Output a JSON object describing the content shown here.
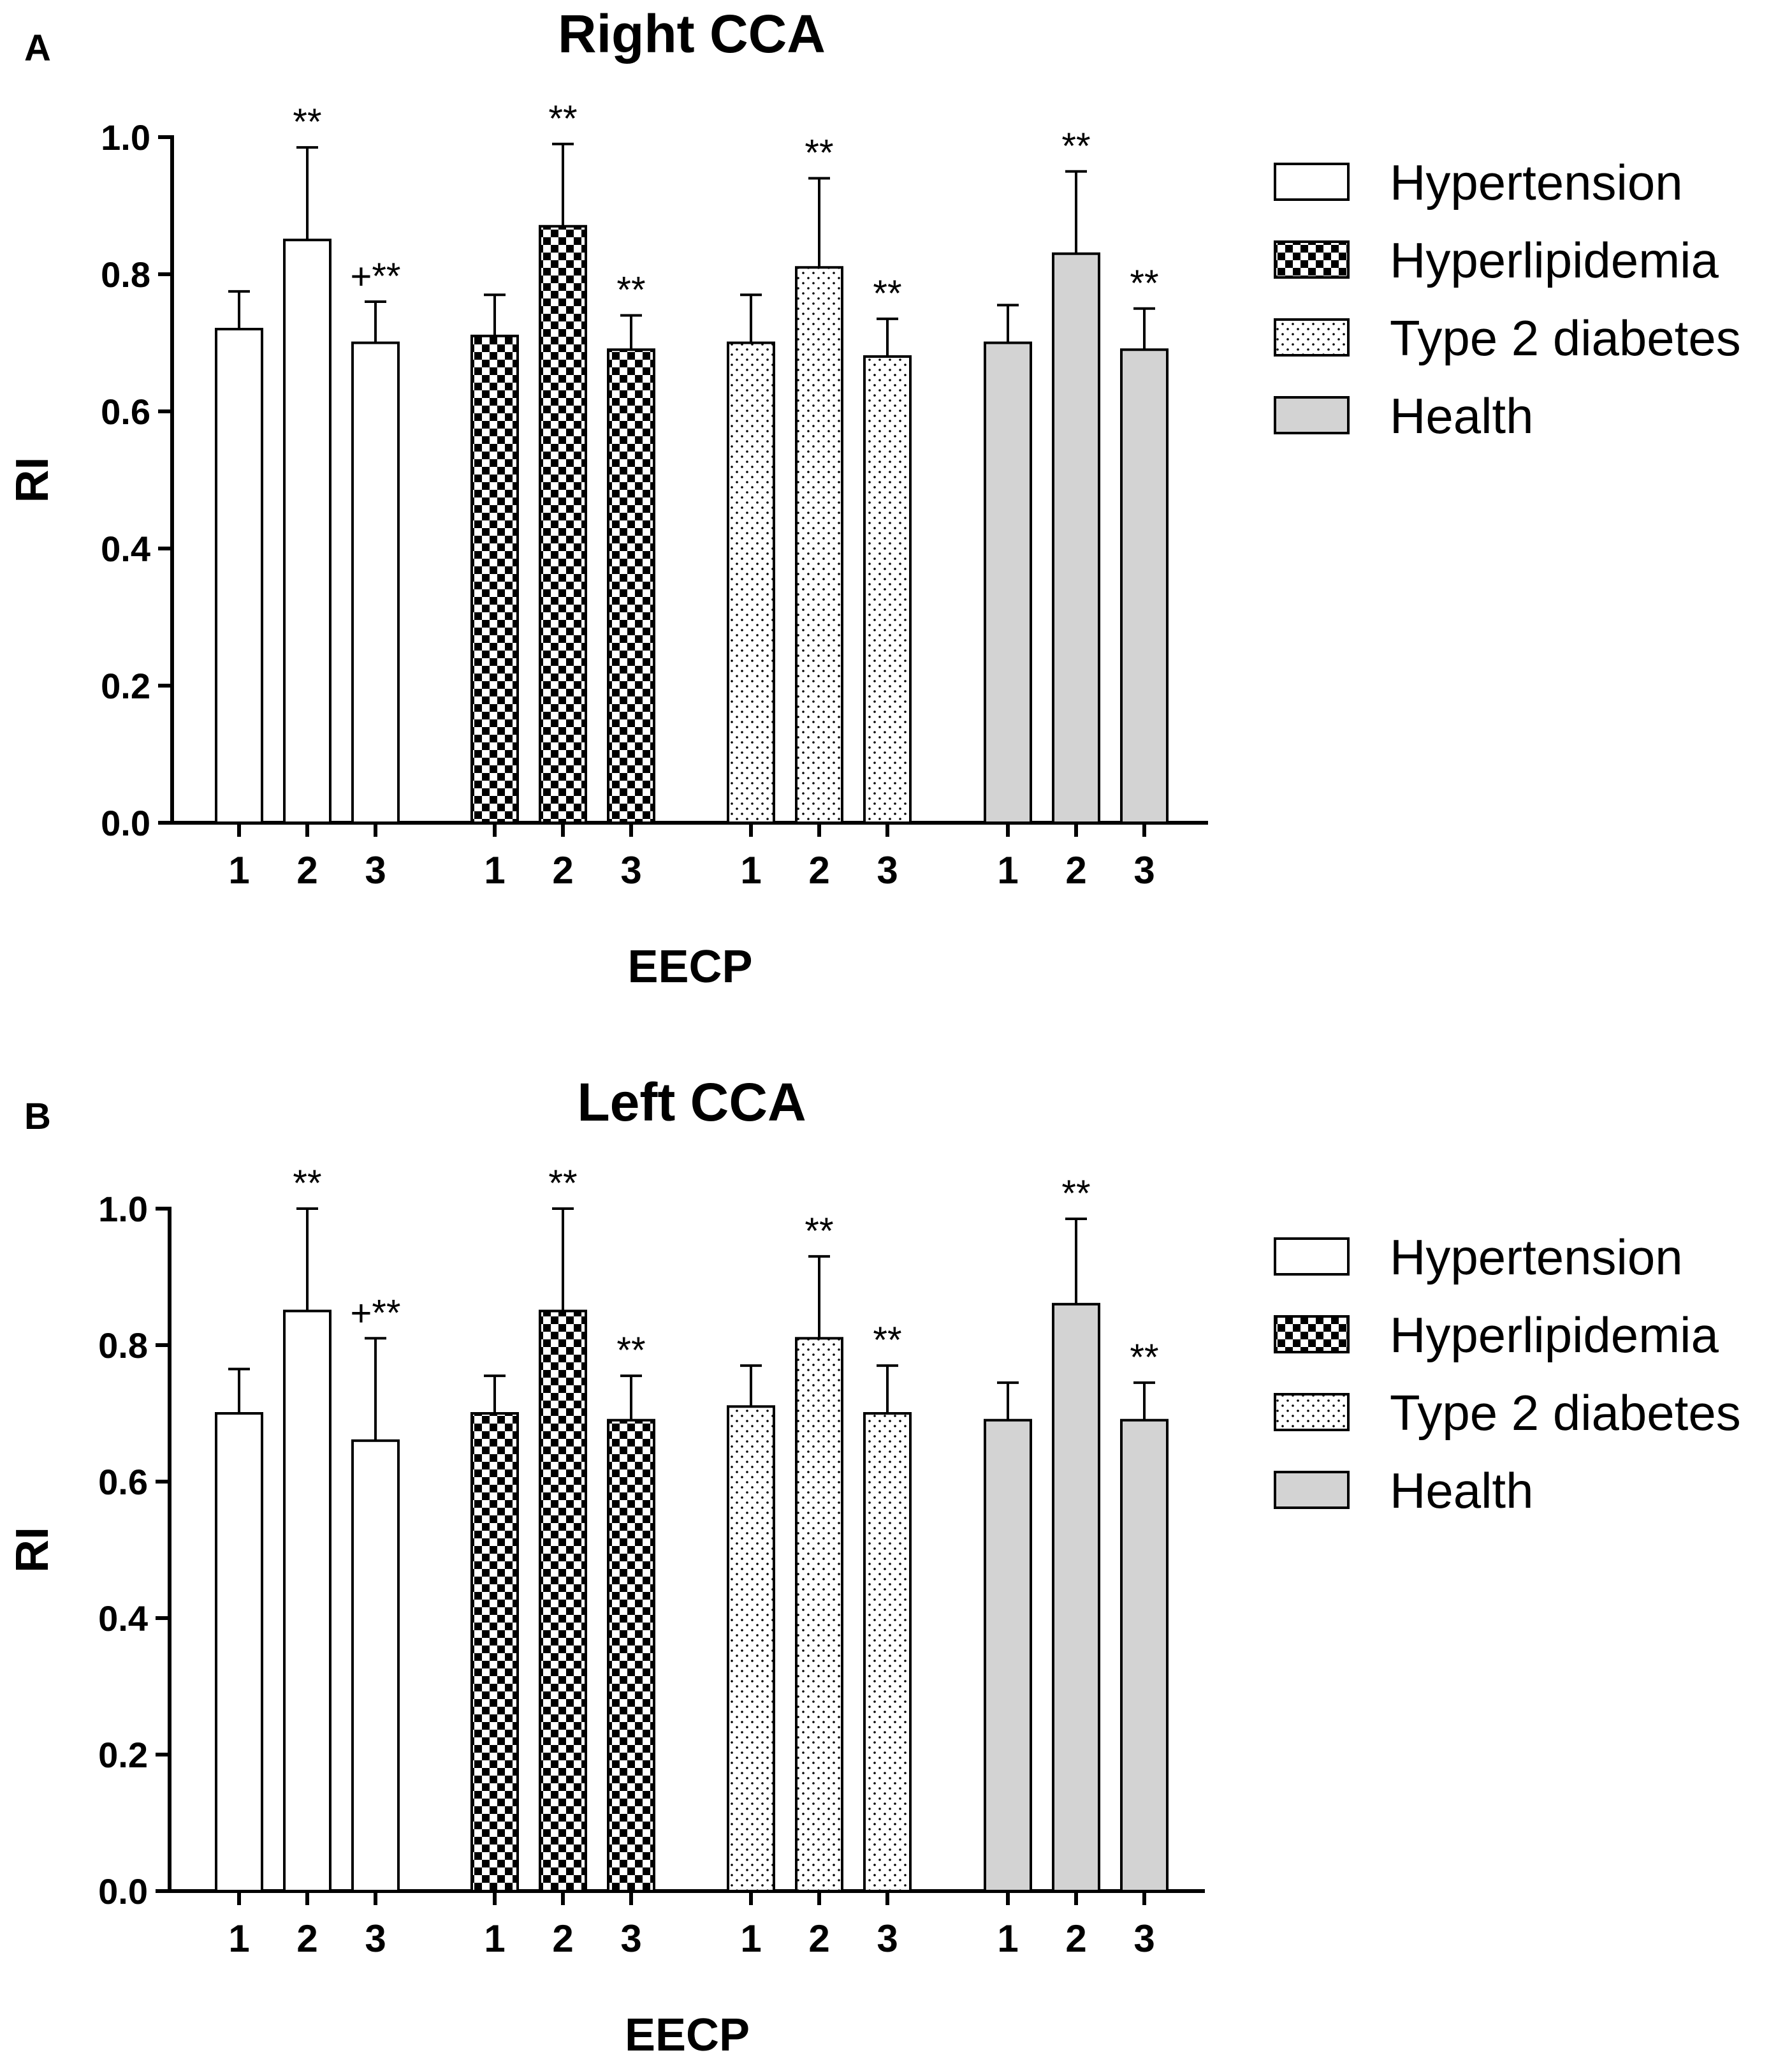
{
  "chart_data": [
    {
      "panel": "A",
      "type": "bar",
      "title": "Right CCA",
      "xlabel": "EECP",
      "ylabel": "RI",
      "ylim": [
        0,
        1.0
      ],
      "yticks": [
        "0.0",
        "0.2",
        "0.4",
        "0.6",
        "0.8",
        "1.0"
      ],
      "categories": [
        "1",
        "2",
        "3"
      ],
      "legend_position": "right",
      "series": [
        {
          "name": "Hypertension",
          "pattern": "white",
          "values": [
            0.72,
            0.85,
            0.7
          ],
          "errors": [
            0.055,
            0.135,
            0.06
          ],
          "annotations": [
            "",
            "**",
            "+**"
          ]
        },
        {
          "name": "Hyperlipidemia",
          "pattern": "checker",
          "values": [
            0.71,
            0.87,
            0.69
          ],
          "errors": [
            0.06,
            0.12,
            0.05
          ],
          "annotations": [
            "",
            "**",
            "**"
          ]
        },
        {
          "name": "Type 2 diabetes",
          "pattern": "dots",
          "values": [
            0.7,
            0.81,
            0.68
          ],
          "errors": [
            0.07,
            0.13,
            0.055
          ],
          "annotations": [
            "",
            "**",
            "**"
          ]
        },
        {
          "name": "Health",
          "pattern": "gray",
          "values": [
            0.7,
            0.83,
            0.69
          ],
          "errors": [
            0.055,
            0.12,
            0.06
          ],
          "annotations": [
            "",
            "**",
            "**"
          ]
        }
      ]
    },
    {
      "panel": "B",
      "type": "bar",
      "title": "Left CCA",
      "xlabel": "EECP",
      "ylabel": "RI",
      "ylim": [
        0,
        1.0
      ],
      "yticks": [
        "0.0",
        "0.2",
        "0.4",
        "0.6",
        "0.8",
        "1.0"
      ],
      "categories": [
        "1",
        "2",
        "3"
      ],
      "legend_position": "right",
      "series": [
        {
          "name": "Hypertension",
          "pattern": "white",
          "values": [
            0.7,
            0.85,
            0.66
          ],
          "errors": [
            0.065,
            0.15,
            0.15
          ],
          "annotations": [
            "",
            "**",
            "+**"
          ]
        },
        {
          "name": "Hyperlipidemia",
          "pattern": "checker",
          "values": [
            0.7,
            0.85,
            0.69
          ],
          "errors": [
            0.055,
            0.15,
            0.065
          ],
          "annotations": [
            "",
            "**",
            "**"
          ]
        },
        {
          "name": "Type 2 diabetes",
          "pattern": "dots",
          "values": [
            0.71,
            0.81,
            0.7
          ],
          "errors": [
            0.06,
            0.12,
            0.07
          ],
          "annotations": [
            "",
            "**",
            "**"
          ]
        },
        {
          "name": "Health",
          "pattern": "gray",
          "values": [
            0.69,
            0.86,
            0.69
          ],
          "errors": [
            0.055,
            0.125,
            0.055
          ],
          "annotations": [
            "",
            "**",
            "**"
          ]
        }
      ]
    }
  ]
}
